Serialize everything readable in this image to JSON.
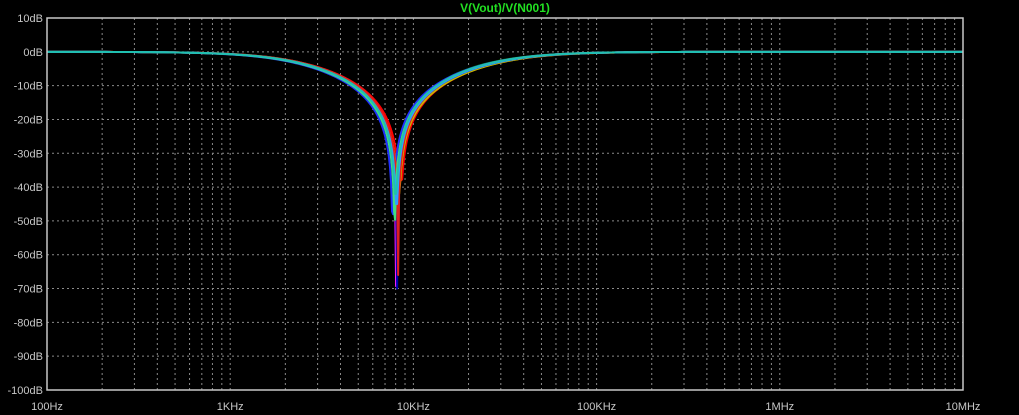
{
  "plot": {
    "title": "V(Vout)/V(N001)",
    "background": "#000000",
    "frame_color": "#c8c8c8",
    "grid_color": "#8a8a8a",
    "label_color": "#c8c8c8",
    "title_color": "#22e022"
  },
  "chart_data": {
    "type": "line",
    "title": "V(Vout)/V(N001)",
    "x_scale": "log",
    "xlim": [
      100,
      10000000
    ],
    "ylim": [
      -100,
      10
    ],
    "grid": true,
    "x_ticks": [
      {
        "value": 100,
        "label": "100Hz"
      },
      {
        "value": 1000,
        "label": "1KHz"
      },
      {
        "value": 10000,
        "label": "10KHz"
      },
      {
        "value": 100000,
        "label": "100KHz"
      },
      {
        "value": 1000000,
        "label": "1MHz"
      },
      {
        "value": 10000000,
        "label": "10MHz"
      }
    ],
    "y_ticks": [
      {
        "value": 10,
        "label": "10dB"
      },
      {
        "value": 0,
        "label": "0dB"
      },
      {
        "value": -10,
        "label": "-10dB"
      },
      {
        "value": -20,
        "label": "-20dB"
      },
      {
        "value": -30,
        "label": "-30dB"
      },
      {
        "value": -40,
        "label": "-40dB"
      },
      {
        "value": -50,
        "label": "-50dB"
      },
      {
        "value": -60,
        "label": "-60dB"
      },
      {
        "value": -70,
        "label": "-70dB"
      },
      {
        "value": -80,
        "label": "-80dB"
      },
      {
        "value": -90,
        "label": "-90dB"
      },
      {
        "value": -100,
        "label": "-100dB"
      }
    ],
    "series": [
      {
        "color": "#ff0000",
        "notch_hz": 8500,
        "q": 0.3,
        "min_db": -38
      },
      {
        "color": "#00c000",
        "notch_hz": 8000,
        "q": 0.32,
        "min_db": -40
      },
      {
        "color": "#2030ff",
        "notch_hz": 7700,
        "q": 0.3,
        "min_db": -48
      },
      {
        "color": "#ff20ff",
        "notch_hz": 8050,
        "q": 0.31,
        "min_db": -77
      },
      {
        "color": "#c0c000",
        "notch_hz": 8300,
        "q": 0.29,
        "min_db": -42
      },
      {
        "color": "#0000b0",
        "notch_hz": 8150,
        "q": 0.3,
        "min_db": -70
      },
      {
        "color": "#e02020",
        "notch_hz": 8250,
        "q": 0.31,
        "min_db": -66
      },
      {
        "color": "#40e080",
        "notch_hz": 7900,
        "q": 0.3,
        "min_db": -55
      },
      {
        "color": "#30a0ff",
        "notch_hz": 8100,
        "q": 0.3,
        "min_db": -45
      },
      {
        "color": "#20c0b0",
        "notch_hz": 8000,
        "q": 0.31,
        "min_db": -42
      }
    ]
  }
}
